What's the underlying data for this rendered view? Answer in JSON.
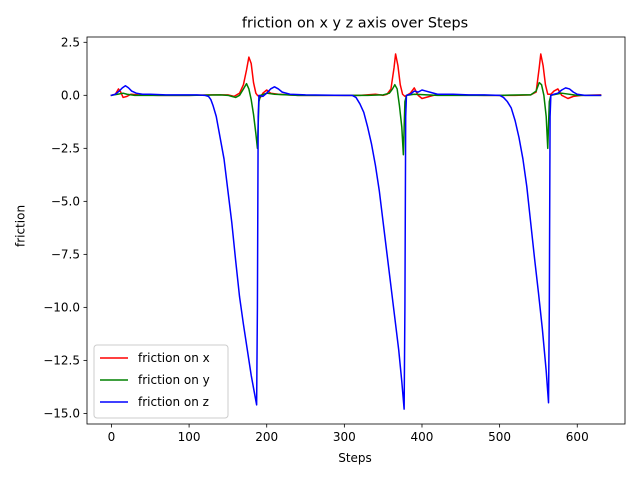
{
  "chart_data": {
    "type": "line",
    "title": "friction on x y z axis over Steps",
    "xlabel": "Steps",
    "ylabel": "friction",
    "xlim": [
      -31.5,
      661.5
    ],
    "ylim": [
      -15.5,
      2.75
    ],
    "xticks": [
      0,
      100,
      200,
      300,
      400,
      500,
      600
    ],
    "xtick_labels": [
      "0",
      "100",
      "200",
      "300",
      "400",
      "500",
      "600"
    ],
    "yticks": [
      2.5,
      0.0,
      -2.5,
      -5.0,
      -7.5,
      -10.0,
      -12.5,
      -15.0
    ],
    "ytick_labels": [
      "2.5",
      "0.0",
      "−2.5",
      "−5.0",
      "−7.5",
      "−10.0",
      "−12.5",
      "−15.0"
    ],
    "grid": false,
    "legend_position": "lower-left",
    "series": [
      {
        "name": "friction on x",
        "color": "#ff0000",
        "points": [
          [
            0,
            0
          ],
          [
            5,
            0.05
          ],
          [
            9,
            0.3
          ],
          [
            12,
            0.15
          ],
          [
            15,
            -0.1
          ],
          [
            20,
            -0.05
          ],
          [
            25,
            0.05
          ],
          [
            35,
            0.02
          ],
          [
            60,
            0
          ],
          [
            100,
            0
          ],
          [
            130,
            0.02
          ],
          [
            150,
            0.02
          ],
          [
            158,
            -0.05
          ],
          [
            165,
            0.1
          ],
          [
            170,
            0.5
          ],
          [
            174,
            1.2
          ],
          [
            177,
            1.8
          ],
          [
            180,
            1.5
          ],
          [
            183,
            0.6
          ],
          [
            186,
            0.1
          ],
          [
            188,
            0
          ],
          [
            192,
            -0.1
          ],
          [
            195,
            0.1
          ],
          [
            200,
            0.25
          ],
          [
            205,
            0.1
          ],
          [
            215,
            0.05
          ],
          [
            240,
            0
          ],
          [
            280,
            0
          ],
          [
            320,
            0
          ],
          [
            340,
            0.05
          ],
          [
            350,
            0
          ],
          [
            355,
            0.05
          ],
          [
            360,
            0.3
          ],
          [
            364,
            1.3
          ],
          [
            366,
            1.95
          ],
          [
            369,
            1.4
          ],
          [
            372,
            0.5
          ],
          [
            375,
            0.05
          ],
          [
            378,
            -0.05
          ],
          [
            385,
            0.1
          ],
          [
            390,
            0.35
          ],
          [
            395,
            0
          ],
          [
            400,
            -0.15
          ],
          [
            410,
            -0.05
          ],
          [
            420,
            0.05
          ],
          [
            440,
            0.02
          ],
          [
            480,
            0
          ],
          [
            520,
            0
          ],
          [
            540,
            0.02
          ],
          [
            547,
            0.15
          ],
          [
            551,
            1.3
          ],
          [
            553,
            1.95
          ],
          [
            556,
            1.4
          ],
          [
            559,
            0.5
          ],
          [
            562,
            0.05
          ],
          [
            566,
            0.05
          ],
          [
            570,
            0.2
          ],
          [
            575,
            0.3
          ],
          [
            580,
            0
          ],
          [
            588,
            -0.15
          ],
          [
            595,
            -0.05
          ],
          [
            605,
            0
          ],
          [
            630,
            0.02
          ]
        ]
      },
      {
        "name": "friction on y",
        "color": "#008000",
        "points": [
          [
            0,
            0
          ],
          [
            8,
            0.05
          ],
          [
            15,
            0.1
          ],
          [
            20,
            0.05
          ],
          [
            30,
            0
          ],
          [
            60,
            0
          ],
          [
            100,
            0
          ],
          [
            140,
            0.02
          ],
          [
            150,
            0
          ],
          [
            155,
            -0.05
          ],
          [
            160,
            -0.1
          ],
          [
            165,
            0
          ],
          [
            170,
            0.3
          ],
          [
            174,
            0.55
          ],
          [
            177,
            0.3
          ],
          [
            180,
            -0.2
          ],
          [
            183,
            -0.9
          ],
          [
            186,
            -1.8
          ],
          [
            188,
            -2.5
          ],
          [
            190,
            -0.3
          ],
          [
            192,
            0
          ],
          [
            200,
            0.1
          ],
          [
            210,
            0.05
          ],
          [
            240,
            0
          ],
          [
            300,
            0
          ],
          [
            330,
            0
          ],
          [
            350,
            0.02
          ],
          [
            358,
            0.1
          ],
          [
            362,
            0.3
          ],
          [
            365,
            0.5
          ],
          [
            368,
            0.3
          ],
          [
            371,
            -0.5
          ],
          [
            374,
            -1.5
          ],
          [
            376,
            -2.8
          ],
          [
            378,
            -0.3
          ],
          [
            380,
            0
          ],
          [
            390,
            0.05
          ],
          [
            420,
            0
          ],
          [
            500,
            0
          ],
          [
            530,
            0.02
          ],
          [
            540,
            0.02
          ],
          [
            547,
            0.2
          ],
          [
            551,
            0.6
          ],
          [
            554,
            0.5
          ],
          [
            557,
            0
          ],
          [
            560,
            -1
          ],
          [
            562,
            -2.5
          ],
          [
            564,
            -0.3
          ],
          [
            566,
            0
          ],
          [
            580,
            0.1
          ],
          [
            600,
            0
          ],
          [
            630,
            0
          ]
        ]
      },
      {
        "name": "friction on z",
        "color": "#0000ff",
        "points": [
          [
            0,
            0
          ],
          [
            5,
            0.05
          ],
          [
            10,
            0.2
          ],
          [
            14,
            0.35
          ],
          [
            18,
            0.45
          ],
          [
            22,
            0.35
          ],
          [
            26,
            0.2
          ],
          [
            32,
            0.1
          ],
          [
            40,
            0.05
          ],
          [
            50,
            0.05
          ],
          [
            70,
            0.02
          ],
          [
            90,
            0.02
          ],
          [
            110,
            0.02
          ],
          [
            120,
            0
          ],
          [
            125,
            -0.05
          ],
          [
            128,
            -0.2
          ],
          [
            131,
            -0.5
          ],
          [
            135,
            -1
          ],
          [
            140,
            -2
          ],
          [
            145,
            -3
          ],
          [
            150,
            -4.5
          ],
          [
            155,
            -6
          ],
          [
            160,
            -7.8
          ],
          [
            165,
            -9.5
          ],
          [
            170,
            -10.8
          ],
          [
            175,
            -12
          ],
          [
            180,
            -13.2
          ],
          [
            184,
            -14
          ],
          [
            187,
            -14.6
          ],
          [
            188,
            -10
          ],
          [
            189,
            -1
          ],
          [
            190,
            0
          ],
          [
            195,
            -0.05
          ],
          [
            200,
            0.1
          ],
          [
            205,
            0.3
          ],
          [
            210,
            0.4
          ],
          [
            215,
            0.3
          ],
          [
            220,
            0.15
          ],
          [
            230,
            0.05
          ],
          [
            250,
            0.02
          ],
          [
            300,
            0
          ],
          [
            310,
            0
          ],
          [
            315,
            -0.1
          ],
          [
            320,
            -0.4
          ],
          [
            325,
            -0.8
          ],
          [
            330,
            -1.5
          ],
          [
            335,
            -2.3
          ],
          [
            340,
            -3.3
          ],
          [
            345,
            -4.5
          ],
          [
            350,
            -6
          ],
          [
            355,
            -7.5
          ],
          [
            360,
            -9
          ],
          [
            365,
            -10.5
          ],
          [
            370,
            -12
          ],
          [
            374,
            -13.5
          ],
          [
            377,
            -14.8
          ],
          [
            378,
            -10
          ],
          [
            379,
            -1
          ],
          [
            380,
            0
          ],
          [
            385,
            0.05
          ],
          [
            390,
            0.2
          ],
          [
            395,
            0.15
          ],
          [
            400,
            0.25
          ],
          [
            405,
            0.2
          ],
          [
            410,
            0.15
          ],
          [
            420,
            0.05
          ],
          [
            440,
            0.05
          ],
          [
            460,
            0.02
          ],
          [
            480,
            0.02
          ],
          [
            500,
            0
          ],
          [
            505,
            -0.1
          ],
          [
            510,
            -0.3
          ],
          [
            515,
            -0.6
          ],
          [
            520,
            -1.2
          ],
          [
            525,
            -2
          ],
          [
            530,
            -3
          ],
          [
            535,
            -4.3
          ],
          [
            540,
            -6
          ],
          [
            545,
            -7.7
          ],
          [
            550,
            -9.3
          ],
          [
            555,
            -11
          ],
          [
            560,
            -13
          ],
          [
            563,
            -14.5
          ],
          [
            564,
            -10
          ],
          [
            565,
            -1
          ],
          [
            566,
            0
          ],
          [
            570,
            0.05
          ],
          [
            575,
            0.1
          ],
          [
            580,
            0.25
          ],
          [
            585,
            0.35
          ],
          [
            590,
            0.3
          ],
          [
            595,
            0.15
          ],
          [
            600,
            0.05
          ],
          [
            610,
            0
          ],
          [
            630,
            0
          ]
        ]
      }
    ]
  }
}
